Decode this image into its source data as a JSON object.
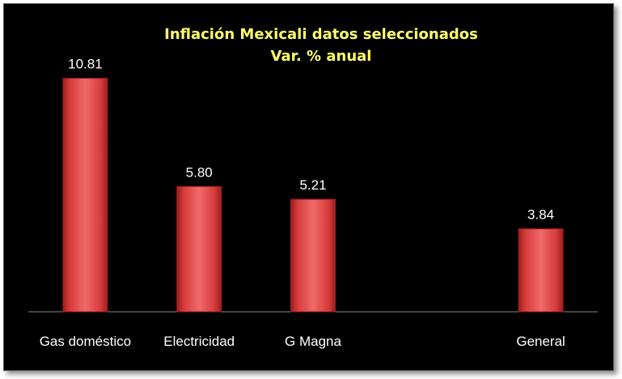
{
  "chart_data": {
    "type": "bar",
    "title": "Inflación Mexicali datos seleccionados",
    "subtitle": "Var. % anual",
    "categories": [
      "Gas doméstico",
      "Electricidad",
      "G Magna",
      "",
      "General"
    ],
    "values": [
      10.81,
      5.8,
      5.21,
      null,
      3.84
    ],
    "value_labels": [
      "10.81",
      "5.80",
      "5.21",
      "",
      "3.84"
    ],
    "ylim": [
      0,
      12
    ],
    "grid": false,
    "legend": "none",
    "colors": {
      "background": "#000000",
      "bar": "#d63b3b",
      "bar_highlight": "#f06a6a",
      "bar_shadow": "#9a1e1e",
      "title": "#ffff66",
      "text": "#ffffff",
      "axis": "#888888"
    }
  }
}
